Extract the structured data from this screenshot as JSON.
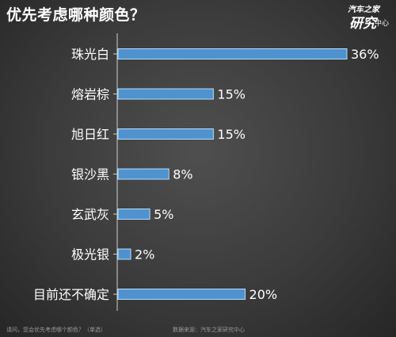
{
  "header": {
    "title": "优先考虑哪种颜色？",
    "logo_line1": "汽车之家",
    "logo_line2": "研究",
    "logo_line3": "中心"
  },
  "chart_data": {
    "type": "bar",
    "orientation": "horizontal",
    "title": "优先考虑哪种颜色？",
    "categories": [
      "珠光白",
      "熔岩棕",
      "旭日红",
      "银沙黑",
      "玄武灰",
      "极光银",
      "目前还不确定"
    ],
    "values": [
      36,
      15,
      15,
      8,
      5,
      2,
      20
    ],
    "value_labels": [
      "36%",
      "15%",
      "15%",
      "8%",
      "5%",
      "2%",
      "20%"
    ],
    "unit": "%",
    "xlim": [
      0,
      36
    ],
    "grid": false,
    "bar_color": "#4e92d0",
    "bar_border_color": "#bcdcf5"
  },
  "footer": {
    "question": "请问，您会优先考虑哪个颜色？（单选）",
    "source": "数据来源：汽车之家研究中心"
  },
  "colors": {
    "background": "#3b3b3b",
    "text": "#ffffff",
    "axis": "#d0d0d0",
    "footer_text": "#9a9a9a"
  }
}
